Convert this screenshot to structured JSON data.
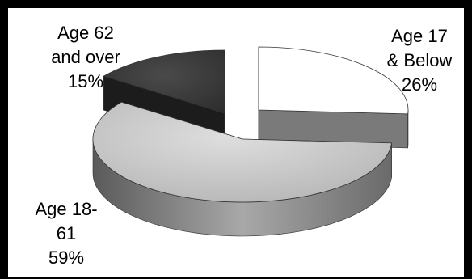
{
  "chart_data": {
    "type": "pie",
    "style": "3d-exploded",
    "title": "",
    "slices": [
      {
        "label": "Age 17 & Below",
        "value": 26,
        "value_label": "26%",
        "label_lines": [
          "Age 17",
          "& Below",
          "26%"
        ],
        "top_color": "#ffffff",
        "side_color": "#7a7a7a"
      },
      {
        "label": "Age 18-61",
        "value": 59,
        "value_label": "59%",
        "label_lines": [
          "Age 18-",
          "61",
          "59%"
        ],
        "top_color": "#c6c6c6",
        "side_color": "#8a8a8a"
      },
      {
        "label": "Age 62 and over",
        "value": 15,
        "value_label": "15%",
        "label_lines": [
          "Age 62",
          "and over",
          "15%"
        ],
        "top_color": "#3f3f3f",
        "side_color": "#1c1c1c"
      }
    ]
  }
}
